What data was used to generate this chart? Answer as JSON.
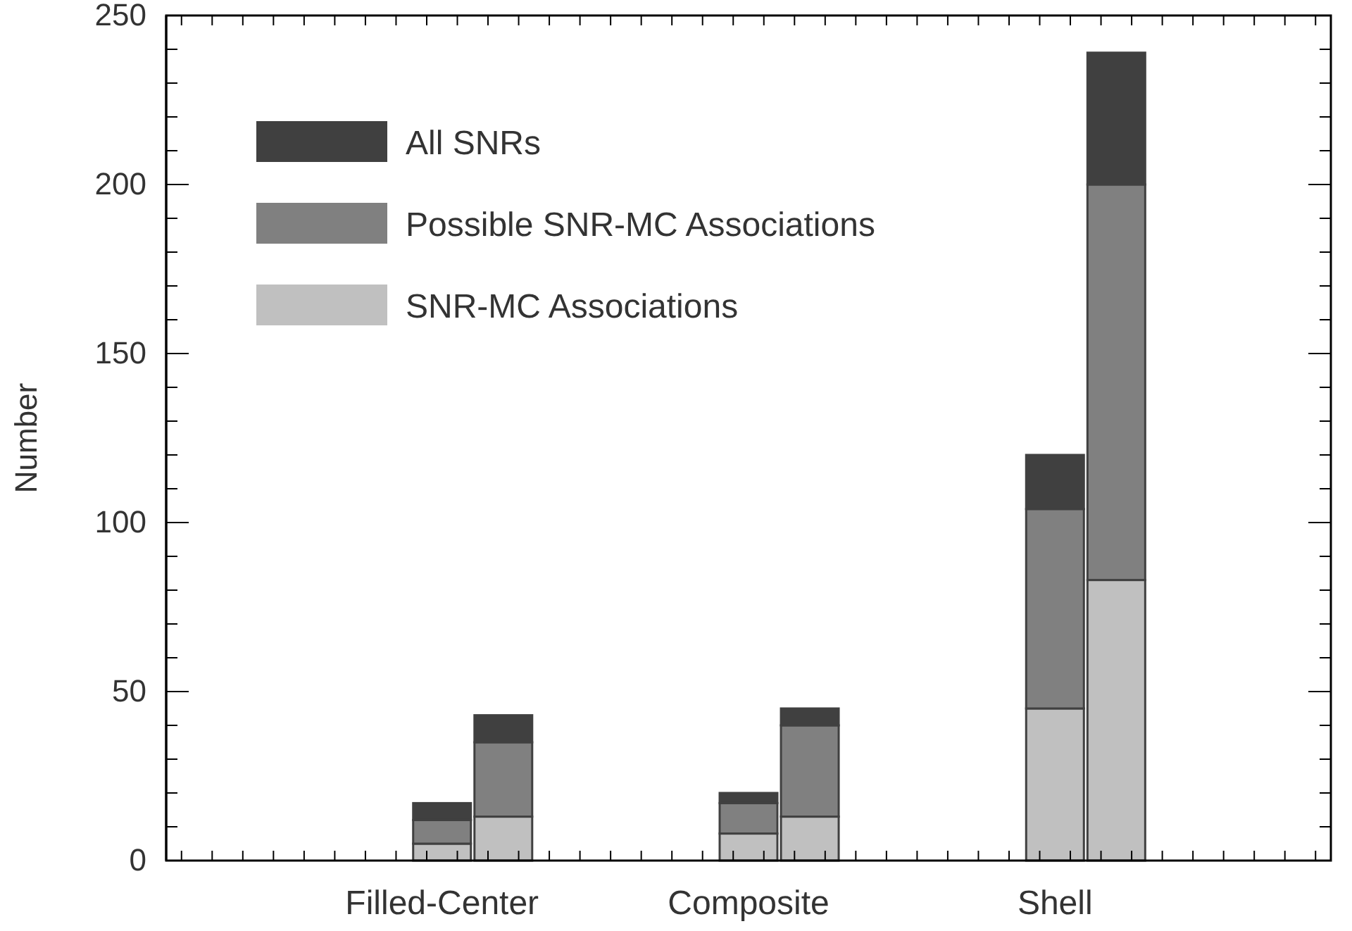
{
  "chart_data": {
    "type": "bar",
    "ylabel": "Number",
    "categories": [
      null,
      null,
      null,
      null,
      "Filled-Center",
      null,
      null,
      null,
      null,
      "Composite",
      null,
      null,
      null,
      null,
      "Shell",
      null,
      null,
      null,
      null
    ],
    "stacked": true,
    "series": [
      {
        "name": "SNR-MC Associations",
        "color": "#c0c0c0",
        "values": [
          null,
          null,
          null,
          null,
          5,
          13,
          null,
          null,
          null,
          8,
          13,
          null,
          null,
          null,
          45,
          83,
          null,
          null,
          null
        ]
      },
      {
        "name": "Possible SNR-MC Associations",
        "color": "#808080",
        "values": [
          null,
          null,
          null,
          null,
          7,
          22,
          null,
          null,
          null,
          9,
          27,
          null,
          null,
          null,
          59,
          117,
          null,
          null,
          null
        ]
      },
      {
        "name": "All SNRs",
        "color": "#404040",
        "values": [
          null,
          null,
          null,
          null,
          5,
          8,
          null,
          null,
          null,
          3,
          5,
          null,
          null,
          null,
          16,
          39,
          null,
          null,
          null
        ]
      }
    ],
    "ylim": [
      0,
      250
    ],
    "yticks": [
      0,
      50,
      100,
      150,
      200,
      250
    ],
    "legend": "top left",
    "grid": false
  }
}
